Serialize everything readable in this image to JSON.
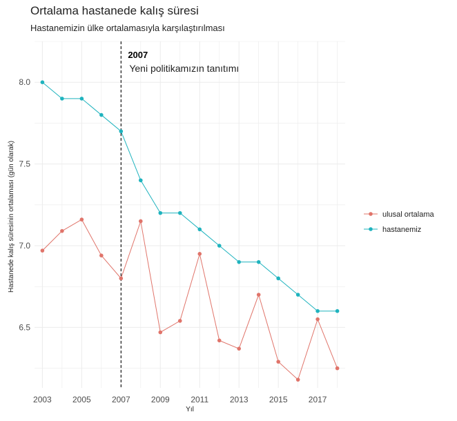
{
  "title": "Ortalama hastanede kalış süresi",
  "subtitle": "Hastanemizin ülke ortalamasıyla karşılaştırılması",
  "colors": {
    "national": "#E0746A",
    "hospital": "#1FB3BE",
    "grid": "#EBEBEB",
    "vline": "#000000"
  },
  "chart_data": {
    "type": "line",
    "x": [
      2003,
      2004,
      2005,
      2006,
      2007,
      2008,
      2009,
      2010,
      2011,
      2012,
      2013,
      2014,
      2015,
      2016,
      2017,
      2018
    ],
    "series": [
      {
        "name": "ulusal ortalama",
        "key": "national",
        "values": [
          6.97,
          7.09,
          7.16,
          6.94,
          6.8,
          7.15,
          6.47,
          6.54,
          6.95,
          6.42,
          6.37,
          6.7,
          6.29,
          6.18,
          6.55,
          6.25
        ]
      },
      {
        "name": "hastanemiz",
        "key": "hospital",
        "values": [
          8.0,
          7.9,
          7.9,
          7.8,
          7.7,
          7.4,
          7.2,
          7.2,
          7.1,
          7.0,
          6.9,
          6.9,
          6.8,
          6.7,
          6.6,
          6.6
        ]
      }
    ],
    "xlabel": "Yıl",
    "ylabel": "Hastanede kalış süresinin ortalaması (gün olarak)",
    "x_ticks": [
      "2003",
      "2005",
      "2007",
      "2009",
      "2011",
      "2013",
      "2015",
      "2017"
    ],
    "y_ticks": [
      "6.5",
      "7.0",
      "7.5",
      "8.0"
    ],
    "xlim": [
      2002.6,
      2018.4
    ],
    "ylim": [
      6.13,
      8.25
    ],
    "grid": true,
    "legend_position": "right",
    "annotation": {
      "x": 2007,
      "year_label": "2007",
      "text": "Yeni politikamızın tanıtımı"
    }
  }
}
